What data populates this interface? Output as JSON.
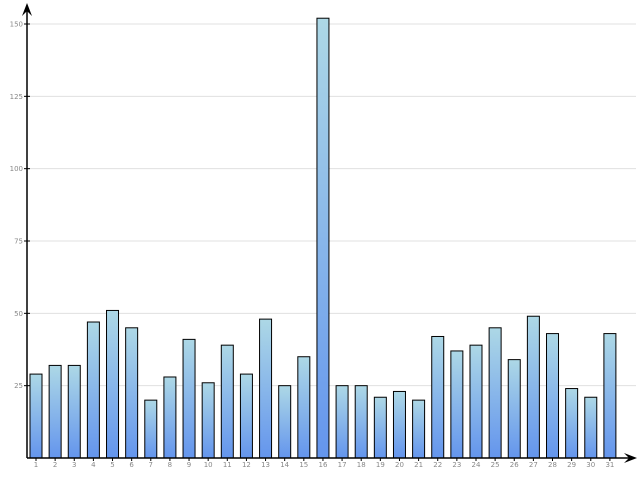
{
  "chart_data": {
    "type": "bar",
    "title": "",
    "xlabel": "",
    "ylabel": "",
    "categories": [
      "1",
      "2",
      "3",
      "4",
      "5",
      "6",
      "7",
      "8",
      "9",
      "10",
      "11",
      "12",
      "13",
      "14",
      "15",
      "16",
      "17",
      "18",
      "19",
      "20",
      "21",
      "22",
      "23",
      "24",
      "25",
      "26",
      "27",
      "28",
      "29",
      "30",
      "31"
    ],
    "values": [
      29,
      32,
      32,
      47,
      51,
      45,
      20,
      28,
      41,
      26,
      39,
      29,
      48,
      25,
      35,
      152,
      25,
      25,
      21,
      23,
      20,
      42,
      37,
      39,
      45,
      34,
      49,
      43,
      24,
      21,
      43
    ],
    "ylim": [
      0,
      150
    ],
    "yticks": [
      "25",
      "50",
      "75",
      "100",
      "125",
      "150"
    ],
    "grid": true,
    "colors": {
      "bar_top": "#add8e6",
      "bar_bottom": "#6495ed",
      "outline": "#000000",
      "grid": "#e0e0e0"
    }
  }
}
